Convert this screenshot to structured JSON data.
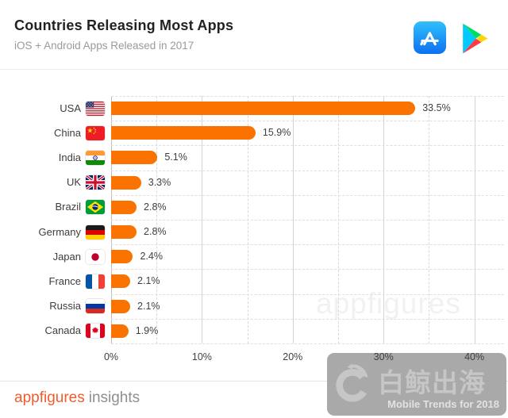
{
  "header": {
    "title": "Countries Releasing Most Apps",
    "subtitle": "iOS + Android Apps Released in 2017",
    "store_icons": [
      "app-store",
      "google-play"
    ]
  },
  "chart_data": {
    "type": "bar",
    "orientation": "horizontal",
    "title": "Countries Releasing Most Apps",
    "subtitle": "iOS + Android Apps Released in 2017",
    "categories": [
      "USA",
      "China",
      "India",
      "UK",
      "Brazil",
      "Germany",
      "Japan",
      "France",
      "Russia",
      "Canada"
    ],
    "values": [
      33.5,
      15.9,
      5.1,
      3.3,
      2.8,
      2.8,
      2.4,
      2.1,
      2.1,
      1.9
    ],
    "value_labels": [
      "33.5%",
      "15.9%",
      "5.1%",
      "3.3%",
      "2.8%",
      "2.8%",
      "2.4%",
      "2.1%",
      "2.1%",
      "1.9%"
    ],
    "flags": [
      "us",
      "cn",
      "in",
      "gb",
      "br",
      "de",
      "jp",
      "fr",
      "ru",
      "ca"
    ],
    "unit": "%",
    "x_ticks": [
      "0%",
      "10%",
      "20%",
      "30%",
      "40%"
    ],
    "x_tick_values": [
      0,
      10,
      20,
      30,
      40
    ],
    "xlim": [
      0,
      40
    ],
    "minor_grid_step": 5,
    "grid": true,
    "legend": false,
    "bar_color": "#fa7300"
  },
  "watermarks": {
    "chart_text": "appfigures",
    "overlay_brand": "白鲸出海",
    "overlay_caption": "Mobile Trends for 2018"
  },
  "footer": {
    "brand": "appfigures",
    "suffix": "insights"
  },
  "colors": {
    "bar": "#fa7300",
    "footer_brand": "#f15b2e"
  }
}
